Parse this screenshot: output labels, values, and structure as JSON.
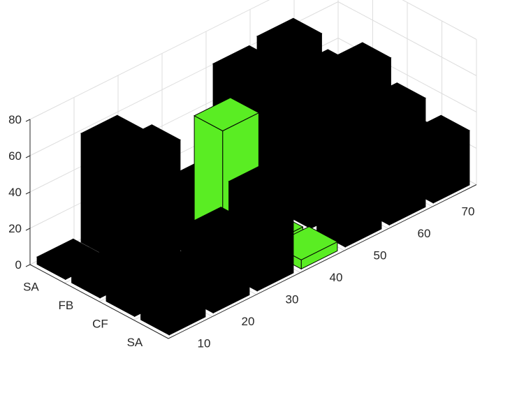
{
  "chart_data": {
    "type": "bar3",
    "title": "",
    "xlabel": "",
    "ylabel": "",
    "zlabel": "",
    "categories": [
      "SA",
      "FB",
      "CF",
      "SA"
    ],
    "x": [
      10,
      20,
      30,
      40,
      50,
      60,
      70
    ],
    "zlim": [
      0,
      80
    ],
    "ztick_labels": [
      "0",
      "20",
      "40",
      "60",
      "80"
    ],
    "xtick_labels": [
      "10",
      "20",
      "30",
      "40",
      "50",
      "60",
      "70"
    ],
    "ytick_labels": [
      "SA",
      "FB",
      "CF",
      "SA"
    ],
    "grid": true,
    "series": [
      {
        "values": [
          4,
          60,
          20,
          12,
          62,
          65,
          25
        ]
      },
      {
        "values": [
          9,
          65,
          25,
          20,
          58,
          58,
          20
        ]
      },
      {
        "values": [
          11,
          7,
          78,
          3,
          52,
          72,
          22
        ]
      },
      {
        "values": [
          14,
          40,
          52,
          5,
          32,
          60,
          30
        ]
      }
    ],
    "highlight_cells": [
      {
        "row": 2,
        "col": 2
      },
      {
        "row": 2,
        "col": 3
      },
      {
        "row": 3,
        "col": 3
      }
    ],
    "colors": {
      "bar": "#000000",
      "highlight": "#5aed23",
      "grid": "#dddddd",
      "axis": "#262626"
    }
  }
}
